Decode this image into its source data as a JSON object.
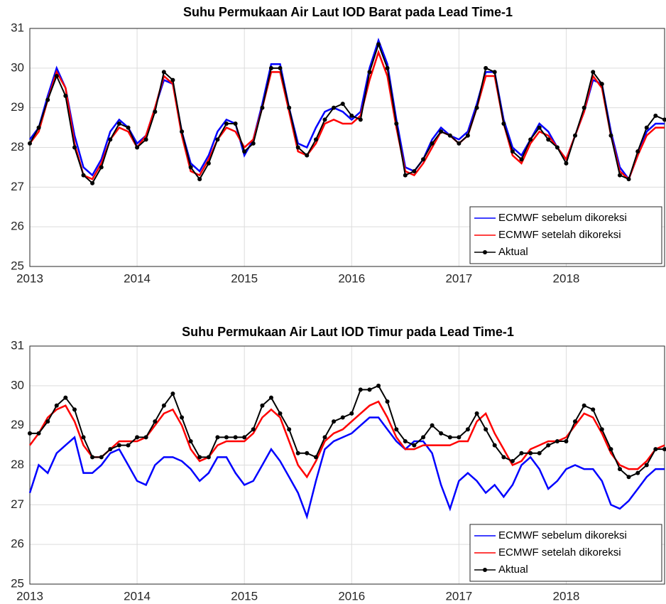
{
  "chart_data": [
    {
      "type": "line",
      "title": "Suhu Permukaan Air Laut IOD Barat pada Lead Time-1",
      "x": [
        2013,
        2013.083,
        2013.167,
        2013.25,
        2013.333,
        2013.417,
        2013.5,
        2013.583,
        2013.667,
        2013.75,
        2013.833,
        2013.917,
        2014,
        2014.083,
        2014.167,
        2014.25,
        2014.333,
        2014.417,
        2014.5,
        2014.583,
        2014.667,
        2014.75,
        2014.833,
        2014.917,
        2015,
        2015.083,
        2015.167,
        2015.25,
        2015.333,
        2015.417,
        2015.5,
        2015.583,
        2015.667,
        2015.75,
        2015.833,
        2015.917,
        2016,
        2016.083,
        2016.167,
        2016.25,
        2016.333,
        2016.417,
        2016.5,
        2016.583,
        2016.667,
        2016.75,
        2016.833,
        2016.917,
        2017,
        2017.083,
        2017.167,
        2017.25,
        2017.333,
        2017.417,
        2017.5,
        2017.583,
        2017.667,
        2017.75,
        2017.833,
        2017.917,
        2018,
        2018.083,
        2018.167,
        2018.25,
        2018.333,
        2018.417,
        2018.5,
        2018.583,
        2018.667,
        2018.75,
        2018.833,
        2018.917
      ],
      "xlim": [
        2013,
        2018.917
      ],
      "xticks": [
        2013,
        2014,
        2015,
        2016,
        2017,
        2018
      ],
      "ylim": [
        25,
        31
      ],
      "yticks": [
        25,
        26,
        27,
        28,
        29,
        30,
        31
      ],
      "grid": true,
      "legend": "lower right",
      "series": [
        {
          "name": "ECMWF sebelum dikoreksi",
          "color": "#0000ff",
          "values": [
            28.2,
            28.5,
            29.3,
            30.0,
            29.5,
            28.3,
            27.5,
            27.3,
            27.7,
            28.4,
            28.7,
            28.5,
            28.1,
            28.3,
            29.0,
            29.7,
            29.6,
            28.4,
            27.6,
            27.4,
            27.8,
            28.4,
            28.7,
            28.6,
            27.8,
            28.2,
            29.1,
            30.1,
            30.1,
            29.0,
            28.1,
            28.0,
            28.5,
            28.9,
            29.0,
            28.9,
            28.7,
            28.9,
            30.0,
            30.7,
            30.1,
            28.7,
            27.5,
            27.4,
            27.7,
            28.2,
            28.5,
            28.3,
            28.2,
            28.4,
            29.1,
            29.9,
            29.9,
            28.7,
            28.0,
            27.8,
            28.2,
            28.6,
            28.4,
            28.0,
            27.7,
            28.3,
            28.9,
            29.7,
            29.6,
            28.4,
            27.5,
            27.2,
            27.8,
            28.4,
            28.6,
            28.6
          ]
        },
        {
          "name": "ECMWF setelah dikoreksi",
          "color": "#ff0000",
          "values": [
            28.1,
            28.4,
            29.2,
            29.9,
            29.5,
            28.1,
            27.3,
            27.2,
            27.6,
            28.2,
            28.5,
            28.4,
            28.0,
            28.3,
            29.0,
            29.8,
            29.6,
            28.3,
            27.4,
            27.3,
            27.7,
            28.2,
            28.5,
            28.4,
            28.0,
            28.2,
            29.0,
            29.9,
            29.9,
            28.9,
            27.9,
            27.8,
            28.1,
            28.6,
            28.7,
            28.6,
            28.6,
            28.8,
            29.7,
            30.4,
            29.8,
            28.5,
            27.4,
            27.3,
            27.6,
            28.0,
            28.4,
            28.3,
            28.1,
            28.3,
            29.0,
            29.8,
            29.8,
            28.6,
            27.8,
            27.6,
            28.1,
            28.4,
            28.3,
            28.0,
            27.7,
            28.3,
            28.9,
            29.8,
            29.5,
            28.3,
            27.4,
            27.2,
            27.8,
            28.3,
            28.5,
            28.5
          ]
        },
        {
          "name": "Aktual",
          "color": "#000000",
          "marker": "o",
          "values": [
            28.1,
            28.5,
            29.2,
            29.8,
            29.3,
            28.0,
            27.3,
            27.1,
            27.5,
            28.2,
            28.6,
            28.5,
            28.0,
            28.2,
            28.9,
            29.9,
            29.7,
            28.4,
            27.5,
            27.2,
            27.6,
            28.2,
            28.6,
            28.6,
            27.9,
            28.1,
            29.0,
            30.0,
            30.0,
            29.0,
            28.0,
            27.8,
            28.2,
            28.7,
            29.0,
            29.1,
            28.8,
            28.7,
            29.9,
            30.6,
            30.0,
            28.6,
            27.3,
            27.4,
            27.7,
            28.1,
            28.4,
            28.3,
            28.1,
            28.3,
            29.0,
            30.0,
            29.9,
            28.6,
            27.9,
            27.7,
            28.2,
            28.5,
            28.2,
            28.0,
            27.6,
            28.3,
            29.0,
            29.9,
            29.6,
            28.3,
            27.3,
            27.2,
            27.9,
            28.5,
            28.8,
            28.7
          ]
        }
      ]
    },
    {
      "type": "line",
      "title": "Suhu Permukaan Air Laut IOD Timur pada Lead Time-1",
      "x": [
        2013,
        2013.083,
        2013.167,
        2013.25,
        2013.333,
        2013.417,
        2013.5,
        2013.583,
        2013.667,
        2013.75,
        2013.833,
        2013.917,
        2014,
        2014.083,
        2014.167,
        2014.25,
        2014.333,
        2014.417,
        2014.5,
        2014.583,
        2014.667,
        2014.75,
        2014.833,
        2014.917,
        2015,
        2015.083,
        2015.167,
        2015.25,
        2015.333,
        2015.417,
        2015.5,
        2015.583,
        2015.667,
        2015.75,
        2015.833,
        2015.917,
        2016,
        2016.083,
        2016.167,
        2016.25,
        2016.333,
        2016.417,
        2016.5,
        2016.583,
        2016.667,
        2016.75,
        2016.833,
        2016.917,
        2017,
        2017.083,
        2017.167,
        2017.25,
        2017.333,
        2017.417,
        2017.5,
        2017.583,
        2017.667,
        2017.75,
        2017.833,
        2017.917,
        2018,
        2018.083,
        2018.167,
        2018.25,
        2018.333,
        2018.417,
        2018.5,
        2018.583,
        2018.667,
        2018.75,
        2018.833,
        2018.917
      ],
      "xlim": [
        2013,
        2018.917
      ],
      "xticks": [
        2013,
        2014,
        2015,
        2016,
        2017,
        2018
      ],
      "ylim": [
        25,
        31
      ],
      "yticks": [
        25,
        26,
        27,
        28,
        29,
        30,
        31
      ],
      "grid": true,
      "legend": "lower right",
      "series": [
        {
          "name": "ECMWF sebelum dikoreksi",
          "color": "#0000ff",
          "values": [
            27.3,
            28.0,
            27.8,
            28.3,
            28.5,
            28.7,
            27.8,
            27.8,
            28.0,
            28.3,
            28.4,
            28.0,
            27.6,
            27.5,
            28.0,
            28.2,
            28.2,
            28.1,
            27.9,
            27.6,
            27.8,
            28.2,
            28.2,
            27.8,
            27.5,
            27.6,
            28.0,
            28.4,
            28.1,
            27.7,
            27.3,
            26.7,
            27.6,
            28.4,
            28.6,
            28.7,
            28.8,
            29.0,
            29.2,
            29.2,
            28.9,
            28.6,
            28.4,
            28.6,
            28.6,
            28.3,
            27.5,
            26.9,
            27.6,
            27.8,
            27.6,
            27.3,
            27.5,
            27.2,
            27.5,
            28.0,
            28.2,
            27.9,
            27.4,
            27.6,
            27.9,
            28.0,
            27.9,
            27.9,
            27.6,
            27.0,
            26.9,
            27.1,
            27.4,
            27.7,
            27.9,
            27.9
          ]
        },
        {
          "name": "ECMWF setelah dikoreksi",
          "color": "#ff0000",
          "values": [
            28.5,
            28.8,
            29.2,
            29.4,
            29.5,
            29.1,
            28.5,
            28.2,
            28.2,
            28.4,
            28.6,
            28.6,
            28.6,
            28.7,
            29.0,
            29.3,
            29.4,
            29.0,
            28.4,
            28.1,
            28.2,
            28.5,
            28.6,
            28.6,
            28.6,
            28.8,
            29.2,
            29.4,
            29.2,
            28.6,
            28.0,
            27.7,
            28.1,
            28.6,
            28.8,
            28.9,
            29.1,
            29.3,
            29.5,
            29.6,
            29.2,
            28.7,
            28.4,
            28.4,
            28.5,
            28.5,
            28.5,
            28.5,
            28.6,
            28.6,
            29.1,
            29.3,
            28.8,
            28.4,
            28.0,
            28.1,
            28.4,
            28.5,
            28.6,
            28.6,
            28.7,
            29.0,
            29.3,
            29.2,
            28.8,
            28.3,
            28.0,
            27.9,
            27.9,
            28.1,
            28.4,
            28.5
          ]
        },
        {
          "name": "Aktual",
          "color": "#000000",
          "marker": "o",
          "values": [
            28.8,
            28.8,
            29.1,
            29.5,
            29.7,
            29.4,
            28.7,
            28.2,
            28.2,
            28.4,
            28.5,
            28.5,
            28.7,
            28.7,
            29.1,
            29.5,
            29.8,
            29.2,
            28.6,
            28.2,
            28.2,
            28.7,
            28.7,
            28.7,
            28.7,
            28.9,
            29.5,
            29.7,
            29.3,
            28.9,
            28.3,
            28.3,
            28.2,
            28.7,
            29.1,
            29.2,
            29.3,
            29.9,
            29.9,
            30.0,
            29.6,
            28.9,
            28.6,
            28.5,
            28.7,
            29.0,
            28.8,
            28.7,
            28.7,
            28.9,
            29.3,
            28.9,
            28.5,
            28.2,
            28.1,
            28.3,
            28.3,
            28.3,
            28.5,
            28.6,
            28.6,
            29.1,
            29.5,
            29.4,
            28.9,
            28.4,
            27.9,
            27.7,
            27.8,
            28.0,
            28.4,
            28.4
          ]
        }
      ]
    }
  ]
}
